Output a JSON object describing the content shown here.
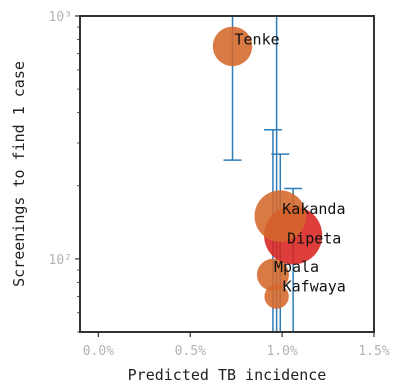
{
  "chart_data": {
    "type": "scatter",
    "title": "",
    "xlabel": "Predicted TB incidence",
    "ylabel": "Screenings to find 1 case",
    "xlim": [
      -0.001,
      0.015
    ],
    "ylim": [
      50,
      1000
    ],
    "y_scale": "log",
    "grid": false,
    "legend": "none",
    "x_ticks": [
      {
        "value": 0.0,
        "label": "0.0%"
      },
      {
        "value": 0.005,
        "label": "0.5%"
      },
      {
        "value": 0.01,
        "label": "1.0%"
      },
      {
        "value": 0.015,
        "label": "1.5%"
      }
    ],
    "y_ticks": [
      {
        "value": 100,
        "label": "10²"
      },
      {
        "value": 1000,
        "label": "10³"
      }
    ],
    "colors": {
      "point_orange": "#d4682b",
      "point_red": "#d8231f",
      "error_bar": "#2f7cb6",
      "axis": "#333333"
    },
    "points": [
      {
        "name": "Tenke",
        "x": 0.0073,
        "y": 750,
        "err_low": 255,
        "err_high": 1000,
        "size": 6,
        "color": "#d4682b"
      },
      {
        "name": "Kakanda",
        "x": 0.0099,
        "y": 150,
        "err_low": 50,
        "err_high": 270,
        "size": 13,
        "color": "#d4682b"
      },
      {
        "name": "Dipeta",
        "x": 0.0106,
        "y": 125,
        "err_low": 50,
        "err_high": 195,
        "size": 18,
        "color": "#d8231f"
      },
      {
        "name": "Mpala",
        "x": 0.0095,
        "y": 86,
        "err_low": 50,
        "err_high": 340,
        "size": 3,
        "color": "#d4682b"
      },
      {
        "name": "Kafwaya",
        "x": 0.0097,
        "y": 70,
        "err_low": 50,
        "err_high": 1000,
        "size": 1,
        "color": "#d4682b"
      }
    ]
  }
}
